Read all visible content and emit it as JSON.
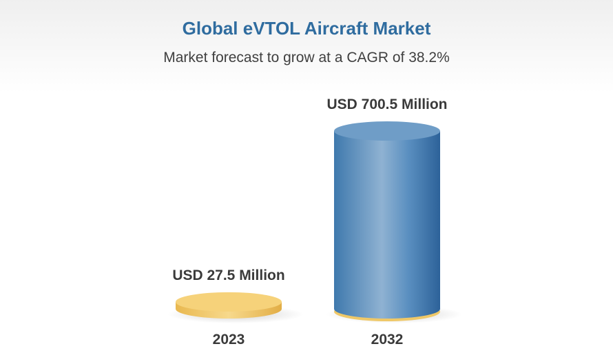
{
  "chart_data": {
    "type": "bar",
    "title": "Global eVTOL Aircraft Market",
    "subtitle": "Market forecast to grow at a CAGR of 38.2%",
    "categories": [
      "2023",
      "2032"
    ],
    "values": [
      27.5,
      700.5
    ],
    "value_labels": [
      "USD 27.5 Million",
      "USD 700.5 Million"
    ],
    "unit": "USD Million",
    "colors": [
      "#f2c96c",
      "#4f86b8"
    ],
    "grid": false,
    "legend": "none"
  }
}
